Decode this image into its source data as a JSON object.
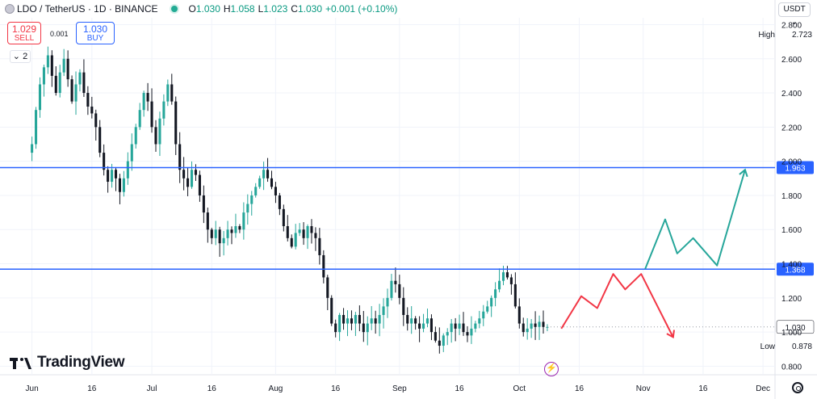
{
  "header": {
    "symbol": "LDO / TetherUS · 1D · BINANCE",
    "o_label": "O",
    "o_value": "1.030",
    "h_label": "H",
    "h_value": "1.058",
    "l_label": "L",
    "l_value": "1.023",
    "c_label": "C",
    "c_value": "1.030",
    "change": "+0.001 (+0.10%)"
  },
  "trade": {
    "sell_price": "1.029",
    "sell_label": "SELL",
    "spread": "0.001",
    "buy_price": "1.030",
    "buy_label": "BUY"
  },
  "collapse_label": "2",
  "currency_label": "USDT",
  "brand": "TradingView",
  "stats": {
    "high_label": "High",
    "high_value": "2.723",
    "low_label": "Low",
    "low_value": "0.878"
  },
  "colors": {
    "up": "#26a69a",
    "down": "#131722",
    "level": "#2962ff",
    "bull_path": "#26a69a",
    "bear_path": "#f23645",
    "accent": "#9c27b0"
  },
  "icons": [
    "coin-icon",
    "chevron-down-icon",
    "flash-icon",
    "gear-icon"
  ],
  "chart_data": {
    "type": "candlestick",
    "y_ticks": [
      0.8,
      1.0,
      1.2,
      1.4,
      1.6,
      1.8,
      2.0,
      2.2,
      2.4,
      2.6,
      2.8
    ],
    "y_tick_labels": [
      "0.800",
      "1.000",
      "1.200",
      "1.400",
      "1.600",
      "1.800",
      "2.000",
      "2.200",
      "2.400",
      "2.600",
      "2.800"
    ],
    "ylim": [
      0.75,
      2.84
    ],
    "x_ticks": [
      {
        "label": "Jun",
        "day": 0
      },
      {
        "label": "16",
        "day": 15
      },
      {
        "label": "Jul",
        "day": 30
      },
      {
        "label": "16",
        "day": 45
      },
      {
        "label": "Aug",
        "day": 61
      },
      {
        "label": "16",
        "day": 76
      },
      {
        "label": "Sep",
        "day": 92
      },
      {
        "label": "16",
        "day": 107
      },
      {
        "label": "Oct",
        "day": 122
      },
      {
        "label": "16",
        "day": 137
      },
      {
        "label": "Nov",
        "day": 153
      },
      {
        "label": "16",
        "day": 168
      },
      {
        "label": "Dec",
        "day": 183
      }
    ],
    "x_range_days": [
      -8,
      186
    ],
    "levels": [
      {
        "value": 1.963,
        "label": "1.963"
      },
      {
        "value": 1.368,
        "label": "1.368"
      }
    ],
    "last_price": {
      "value": 1.03,
      "label": "1.030"
    },
    "closes": [
      2.1,
      2.3,
      2.45,
      2.55,
      2.62,
      2.5,
      2.4,
      2.52,
      2.6,
      2.48,
      2.35,
      2.45,
      2.52,
      2.4,
      2.32,
      2.28,
      2.2,
      2.05,
      1.95,
      1.88,
      1.95,
      1.9,
      1.82,
      1.9,
      2.0,
      2.1,
      2.2,
      2.3,
      2.4,
      2.35,
      2.2,
      2.1,
      2.25,
      2.35,
      2.45,
      2.35,
      2.1,
      1.95,
      1.9,
      1.85,
      1.95,
      1.92,
      1.8,
      1.7,
      1.6,
      1.55,
      1.6,
      1.52,
      1.55,
      1.6,
      1.58,
      1.62,
      1.6,
      1.7,
      1.75,
      1.8,
      1.85,
      1.9,
      1.95,
      1.9,
      1.85,
      1.8,
      1.72,
      1.62,
      1.55,
      1.5,
      1.58,
      1.6,
      1.55,
      1.62,
      1.58,
      1.55,
      1.45,
      1.32,
      1.2,
      1.05,
      1.0,
      1.1,
      1.05,
      1.08,
      1.05,
      1.1,
      1.05,
      1.0,
      1.05,
      1.08,
      1.05,
      1.1,
      1.15,
      1.2,
      1.3,
      1.28,
      1.2,
      1.1,
      1.05,
      1.08,
      1.05,
      1.02,
      1.05,
      1.08,
      1.0,
      0.95,
      0.92,
      0.98,
      1.0,
      1.05,
      1.02,
      1.05,
      1.0,
      0.98,
      1.02,
      1.05,
      1.08,
      1.12,
      1.15,
      1.2,
      1.25,
      1.3,
      1.35,
      1.32,
      1.28,
      1.15,
      1.05,
      1.0,
      1.02,
      1.05,
      1.03,
      1.06,
      1.03,
      1.03
    ],
    "bull_path": [
      {
        "day": 153.5,
        "value": 1.37
      },
      {
        "day": 158.5,
        "value": 1.66
      },
      {
        "day": 161.5,
        "value": 1.46
      },
      {
        "day": 165.5,
        "value": 1.55
      },
      {
        "day": 171.5,
        "value": 1.39
      },
      {
        "day": 178.5,
        "value": 1.95
      }
    ],
    "bear_path": [
      {
        "day": 132.5,
        "value": 1.02
      },
      {
        "day": 137.5,
        "value": 1.21
      },
      {
        "day": 141.5,
        "value": 1.14
      },
      {
        "day": 145.5,
        "value": 1.34
      },
      {
        "day": 148.5,
        "value": 1.25
      },
      {
        "day": 152.5,
        "value": 1.34
      },
      {
        "day": 160.5,
        "value": 0.97
      }
    ]
  }
}
